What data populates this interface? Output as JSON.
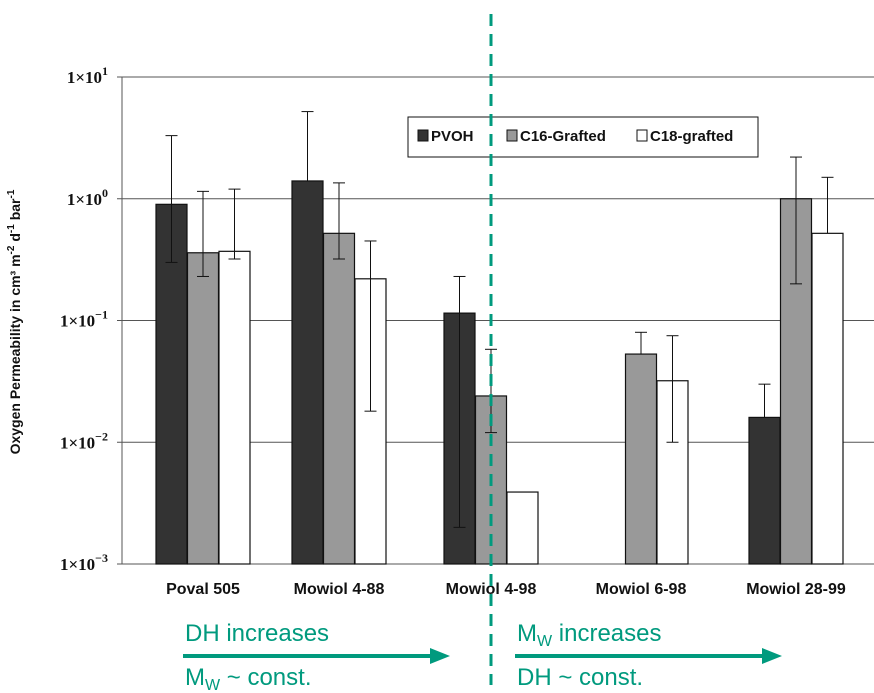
{
  "chart_data": {
    "type": "bar",
    "categories": [
      "Poval 505",
      "Mowiol 4-88",
      "Mowiol 4-98",
      "Mowiol 6-98",
      "Mowiol 28-99"
    ],
    "series": [
      {
        "name": "PVOH",
        "color": "#333333",
        "values": [
          0.9,
          1.4,
          0.115,
          null,
          0.016
        ],
        "err_low": [
          0.3,
          null,
          0.002,
          null,
          null
        ],
        "err_high": [
          3.3,
          5.2,
          0.23,
          null,
          0.03
        ]
      },
      {
        "name": "C16-Grafted",
        "color": "#999999",
        "values": [
          0.36,
          0.52,
          0.024,
          0.053,
          1.0
        ],
        "err_low": [
          0.23,
          0.32,
          0.012,
          null,
          0.2
        ],
        "err_high": [
          1.15,
          1.35,
          0.058,
          0.08,
          2.2
        ]
      },
      {
        "name": "C18-grafted",
        "color": "#ffffff",
        "values": [
          0.37,
          0.22,
          0.0039,
          0.032,
          0.52
        ],
        "err_low": [
          0.32,
          0.018,
          null,
          0.01,
          null
        ],
        "err_high": [
          1.2,
          0.45,
          null,
          0.075,
          1.5
        ]
      }
    ],
    "yscale": "log",
    "ylim": [
      0.001,
      10
    ],
    "yticks": [
      {
        "value": 10,
        "base": "1×10",
        "exp": "1"
      },
      {
        "value": 1,
        "base": "1×10",
        "exp": "0"
      },
      {
        "value": 0.1,
        "base": "1×10",
        "exp": "−1"
      },
      {
        "value": 0.01,
        "base": "1×10",
        "exp": "−2"
      },
      {
        "value": 0.001,
        "base": "1×10",
        "exp": "−3"
      }
    ],
    "ylabel": {
      "main": "Oxygen Permeability in cm³ m",
      "sup1": "-2",
      "mid1": " d",
      "sup2": "-1",
      "mid2": " bar",
      "sup3": "-1"
    },
    "grid": true,
    "legend_position": "top-center",
    "annotations": {
      "left_top": "DH increases",
      "left_bottom_main": "M",
      "left_bottom_sub": "W",
      "left_bottom_rest": " ~ const.",
      "right_top_main": "M",
      "right_top_sub": "W",
      "right_top_rest": " increases",
      "right_bottom": "DH ~ const."
    },
    "accent_color": "#009a7e"
  }
}
